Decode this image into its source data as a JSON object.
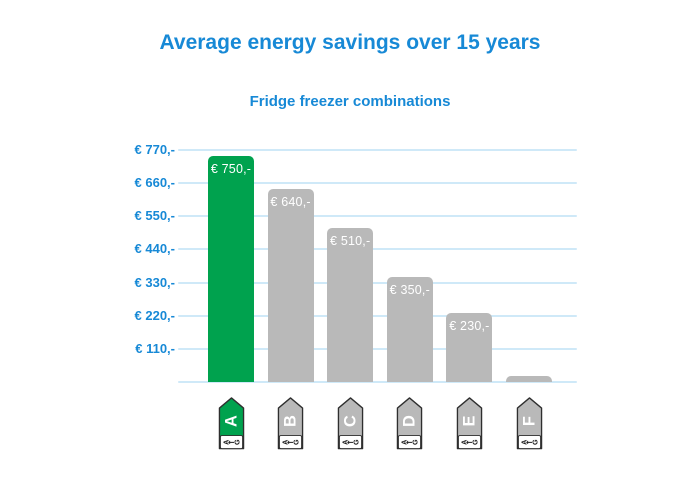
{
  "title": "Average energy savings over 15 years",
  "subtitle": "Fridge freezer combinations",
  "chart_data": {
    "type": "bar",
    "title": "Average energy savings over 15 years",
    "subtitle": "Fridge freezer combinations",
    "categories": [
      "A",
      "B",
      "C",
      "D",
      "E",
      "F"
    ],
    "values": [
      750,
      640,
      510,
      350,
      230,
      20
    ],
    "bar_labels": [
      "€ 750,-",
      "€ 640,-",
      "€ 510,-",
      "€ 350,-",
      "€ 230,-",
      ""
    ],
    "y_ticks": [
      "€ 770,-",
      "€ 660,-",
      "€ 550,-",
      "€ 440,-",
      "€ 330,-",
      "€ 220,-",
      "€ 110,-"
    ],
    "y_tick_values": [
      770,
      660,
      550,
      440,
      330,
      220,
      110
    ],
    "ylim": [
      0,
      770
    ],
    "xlabel": "",
    "ylabel": "",
    "grid": true,
    "legend": false,
    "x_axis_icon_type": "eu-energy-label-tag"
  },
  "energy_tags": [
    {
      "letter": "A",
      "color": "#00a24e",
      "scale_text": "A←G"
    },
    {
      "letter": "B",
      "color": "#b9b9b9",
      "scale_text": "A←G"
    },
    {
      "letter": "C",
      "color": "#b9b9b9",
      "scale_text": "A←G"
    },
    {
      "letter": "D",
      "color": "#b9b9b9",
      "scale_text": "A←G"
    },
    {
      "letter": "E",
      "color": "#b9b9b9",
      "scale_text": "A←G"
    },
    {
      "letter": "F",
      "color": "#b9b9b9",
      "scale_text": "A←G"
    }
  ],
  "colors": {
    "accent_blue": "#1789d6",
    "bar_green": "#00a24e",
    "bar_gray": "#b9b9b9",
    "gridline_blue": "#cfe9f8",
    "bar_label_text": "#ffffff",
    "tag_outline": "#2f2f2f",
    "tag_letter": "#ffffff",
    "tag_scale_text": "#1a1a1a",
    "background": "#ffffff"
  }
}
